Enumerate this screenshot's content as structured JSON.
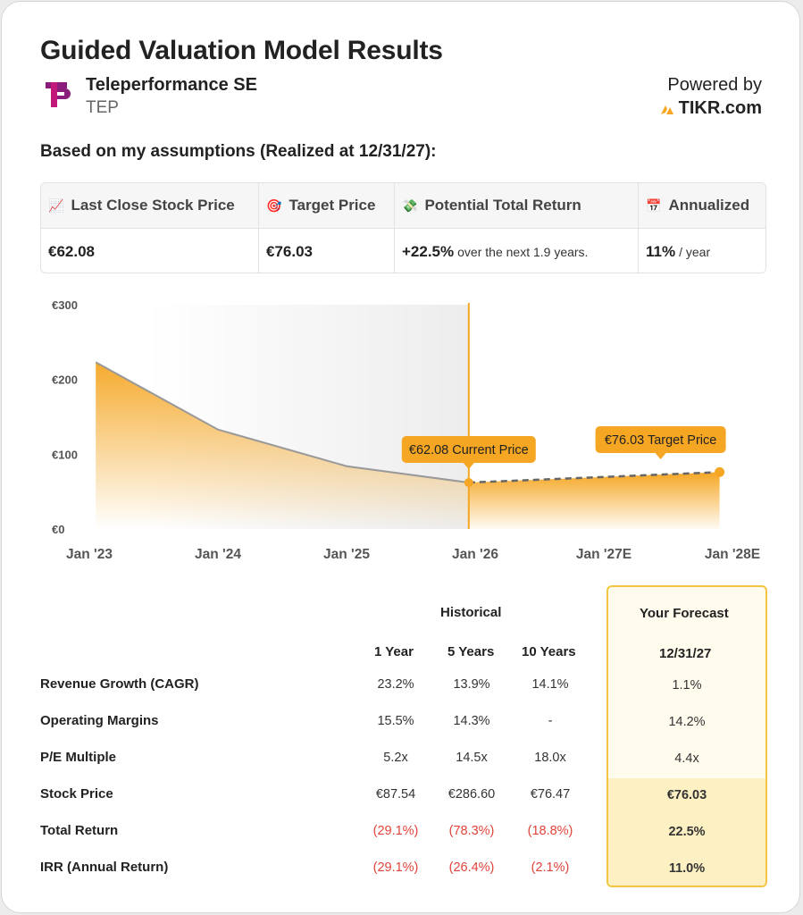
{
  "header": {
    "title": "Guided Valuation Model Results",
    "company": "Teleperformance SE",
    "ticker": "TEP",
    "powered_by": "Powered by",
    "brand": "TIKR.com"
  },
  "assumptions_label": "Based on my assumptions (Realized at 12/31/27):",
  "kpis": [
    {
      "icon": "chart-increasing-icon",
      "emoji": "📈",
      "label": "Last Close Stock Price",
      "value": "€62.08",
      "suffix": ""
    },
    {
      "icon": "target-icon",
      "emoji": "🎯",
      "label": "Target Price",
      "value": "€76.03",
      "suffix": ""
    },
    {
      "icon": "money-wings-icon",
      "emoji": "💸",
      "label": "Potential Total Return",
      "value": "+22.5%",
      "suffix": "over the next 1.9 years."
    },
    {
      "icon": "calendar-icon",
      "emoji": "📅",
      "label": "Annualized",
      "value": "11%",
      "suffix": "/ year"
    }
  ],
  "chart_data": {
    "type": "area",
    "x": [
      "Jan '23",
      "Jan '24",
      "Jan '25",
      "Jan '26",
      "Jan '27E",
      "Jan '28E"
    ],
    "y_ticks": [
      "€300",
      "€200",
      "€100",
      "€0"
    ],
    "ylim": [
      0,
      300
    ],
    "historical": [
      {
        "x": 0.05,
        "y": 223
      },
      {
        "x": 1.0,
        "y": 133
      },
      {
        "x": 2.0,
        "y": 84
      },
      {
        "x": 2.95,
        "y": 62.08
      }
    ],
    "forecast": [
      {
        "x": 2.95,
        "y": 62.08
      },
      {
        "x": 4.9,
        "y": 76.03
      }
    ],
    "current_label": "€62.08 Current Price",
    "target_label": "€76.03 Target Price",
    "colors": {
      "accent": "#f5a623",
      "line": "#999999",
      "band": "#f2f2f2"
    }
  },
  "table": {
    "historical_header": "Historical",
    "forecast_header": "Your Forecast",
    "columns": [
      "1 Year",
      "5 Years",
      "10 Years"
    ],
    "forecast_date": "12/31/27",
    "rows": [
      {
        "label": "Revenue Growth (CAGR)",
        "values": [
          "23.2%",
          "13.9%",
          "14.1%"
        ],
        "forecast": "1.1%",
        "negative": false,
        "bold": false
      },
      {
        "label": "Operating Margins",
        "values": [
          "15.5%",
          "14.3%",
          "-"
        ],
        "forecast": "14.2%",
        "negative": false,
        "bold": false
      },
      {
        "label": "P/E Multiple",
        "values": [
          "5.2x",
          "14.5x",
          "18.0x"
        ],
        "forecast": "4.4x",
        "negative": false,
        "bold": false
      },
      {
        "label": "Stock Price",
        "values": [
          "€87.54",
          "€286.60",
          "€76.47"
        ],
        "forecast": "€76.03",
        "negative": false,
        "bold": true
      },
      {
        "label": "Total Return",
        "values": [
          "(29.1%)",
          "(78.3%)",
          "(18.8%)"
        ],
        "forecast": "22.5%",
        "negative": true,
        "bold": true
      },
      {
        "label": "IRR (Annual Return)",
        "values": [
          "(29.1%)",
          "(26.4%)",
          "(2.1%)"
        ],
        "forecast": "11.0%",
        "negative": true,
        "bold": true
      }
    ]
  }
}
